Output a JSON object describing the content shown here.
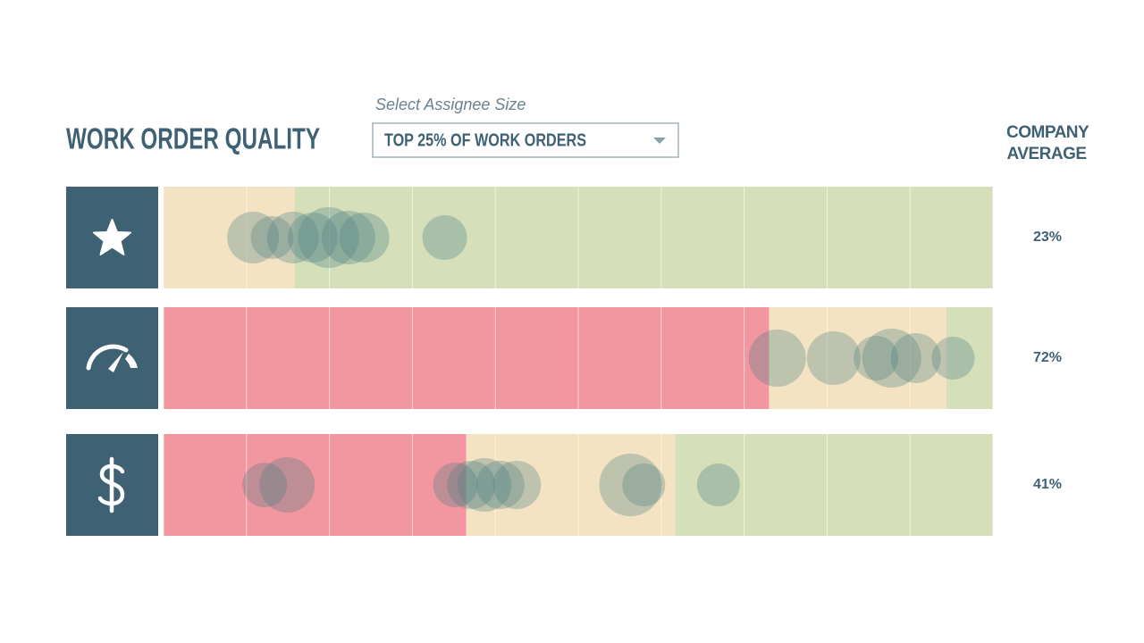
{
  "header": {
    "title": "WORK ORDER QUALITY",
    "select_label": "Select Assignee Size",
    "select_value": "TOP 25% OF WORK ORDERS",
    "average_header": "COMPANY AVERAGE"
  },
  "chart_data": [
    {
      "type": "strip",
      "xlim": [
        0,
        100
      ],
      "xticks": [
        0,
        10,
        20,
        30,
        40,
        50,
        60,
        70,
        80,
        90,
        100
      ],
      "average_label": "23%",
      "color": "#4f7f84",
      "bands": [
        {
          "from": 0,
          "to": 15.8,
          "color": "#f3e3c2"
        },
        {
          "from": 15.8,
          "to": 100,
          "color": "#d5dfba"
        }
      ],
      "values": [
        10.8,
        13.1,
        15.6,
        18.0,
        19.9,
        22.3,
        24.2,
        33.9
      ],
      "sizes": [
        29,
        24,
        29,
        28,
        34,
        30,
        28,
        25
      ]
    },
    {
      "type": "strip",
      "xlim": [
        0,
        100
      ],
      "xticks": [
        0,
        10,
        20,
        30,
        40,
        50,
        60,
        70,
        80,
        90,
        100
      ],
      "average_label": "72%",
      "color": "#4f7f84",
      "bands": [
        {
          "from": 0,
          "to": 73,
          "color": "#f296a0"
        },
        {
          "from": 73,
          "to": 94.4,
          "color": "#f3e3c2"
        },
        {
          "from": 94.4,
          "to": 100,
          "color": "#d5dfba"
        }
      ],
      "values": [
        74.0,
        80.8,
        85.9,
        87.8,
        90.7,
        95.2
      ],
      "sizes": [
        32,
        30,
        25,
        33,
        28,
        24
      ]
    },
    {
      "type": "strip",
      "xlim": [
        0,
        100
      ],
      "xticks": [
        0,
        10,
        20,
        30,
        40,
        50,
        60,
        70,
        80,
        90,
        100
      ],
      "average_label": "41%",
      "color": "#4f7f84",
      "bands": [
        {
          "from": 0,
          "to": 36.5,
          "color": "#f296a0"
        },
        {
          "from": 36.5,
          "to": 61.7,
          "color": "#f3e3c2"
        },
        {
          "from": 61.7,
          "to": 100,
          "color": "#d5dfba"
        }
      ],
      "values": [
        12.2,
        14.9,
        35.2,
        37.1,
        38.7,
        40.6,
        42.6,
        56.3,
        57.9,
        66.9
      ],
      "sizes": [
        25,
        31,
        25,
        27,
        30,
        27,
        27,
        35,
        24,
        24
      ]
    }
  ]
}
